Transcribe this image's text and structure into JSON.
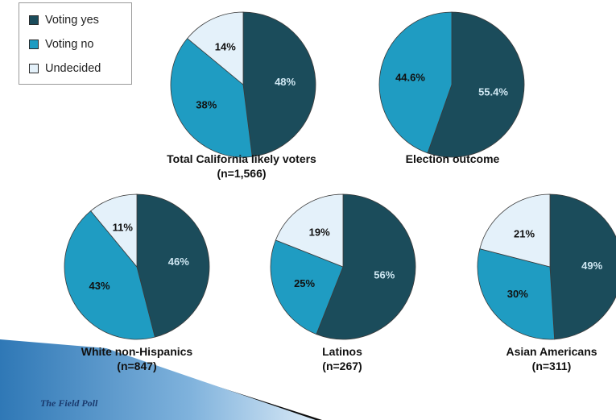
{
  "legend": {
    "items": [
      {
        "label": "Voting yes",
        "color": "#1b4c5b"
      },
      {
        "label": "Voting no",
        "color": "#1f9cc2"
      },
      {
        "label": "Undecided",
        "color": "#e4f1fa"
      }
    ]
  },
  "chart_data": [
    {
      "type": "pie",
      "title": "Total California likely voters",
      "subtitle": "(n=1,566)",
      "categories": [
        "Voting yes",
        "Voting no",
        "Undecided"
      ],
      "values": [
        48,
        38,
        14
      ],
      "labels": [
        "48%",
        "38%",
        "14%"
      ]
    },
    {
      "type": "pie",
      "title": "Election outcome",
      "subtitle": "",
      "categories": [
        "Voting yes",
        "Voting no"
      ],
      "values": [
        55.4,
        44.6
      ],
      "labels": [
        "55.4%",
        "44.6%"
      ]
    },
    {
      "type": "pie",
      "title": "White non-Hispanics",
      "subtitle": "(n=847)",
      "categories": [
        "Voting yes",
        "Voting no",
        "Undecided"
      ],
      "values": [
        46,
        43,
        11
      ],
      "labels": [
        "46%",
        "43%",
        "11%"
      ]
    },
    {
      "type": "pie",
      "title": "Latinos",
      "subtitle": "(n=267)",
      "categories": [
        "Voting yes",
        "Voting no",
        "Undecided"
      ],
      "values": [
        56,
        25,
        19
      ],
      "labels": [
        "56%",
        "25%",
        "19%"
      ]
    },
    {
      "type": "pie",
      "title": "Asian Americans",
      "subtitle": "(n=311)",
      "categories": [
        "Voting yes",
        "Voting no",
        "Undecided"
      ],
      "values": [
        49,
        30,
        21
      ],
      "labels": [
        "49%",
        "30%",
        "21%"
      ]
    }
  ],
  "colors": {
    "yes": "#1b4c5b",
    "no": "#1f9cc2",
    "undecided": "#e4f1fa",
    "yes_label": "#cfe7f2",
    "other_label": "#111111"
  },
  "footer": {
    "brand": "The Field Poll"
  }
}
